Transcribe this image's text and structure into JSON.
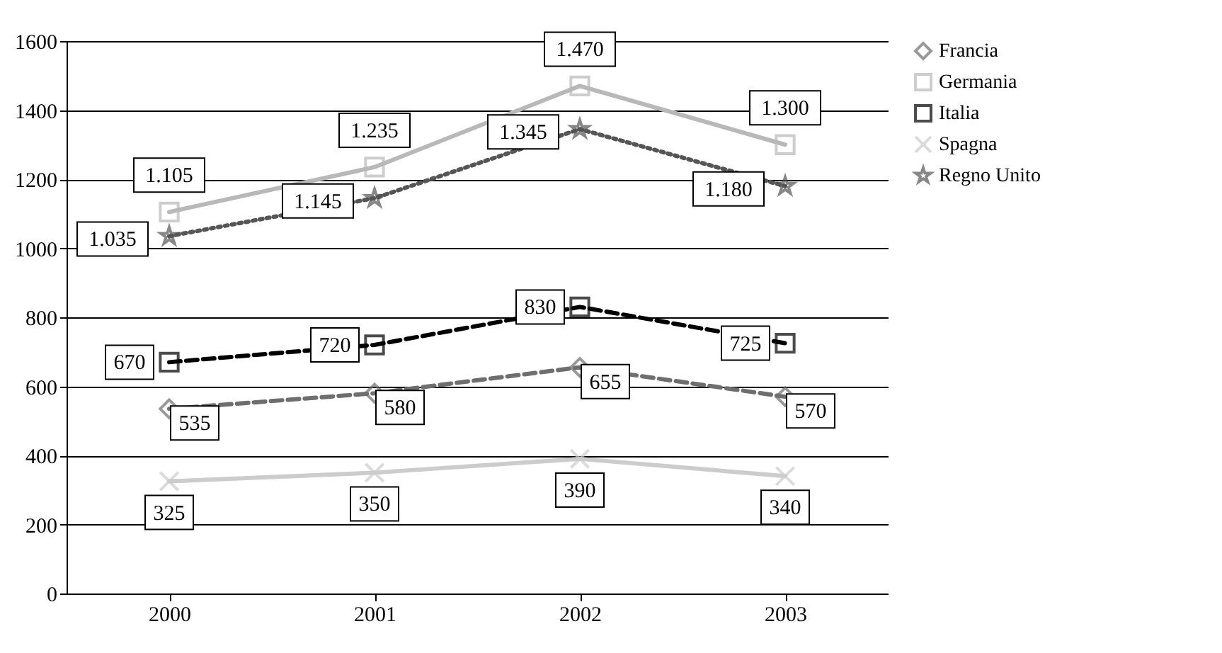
{
  "chart_data": {
    "type": "line",
    "categories": [
      "2000",
      "2001",
      "2002",
      "2003"
    ],
    "ylim": [
      0,
      1600
    ],
    "yticks": [
      0,
      200,
      400,
      600,
      800,
      1000,
      1200,
      1400,
      1600
    ],
    "grid": "y",
    "legend": "right",
    "series": [
      {
        "name": "Francia",
        "color": "#6e6e6e",
        "marker": "diamond",
        "line_style": "dashed",
        "values": [
          535,
          580,
          655,
          570
        ],
        "value_labels": [
          "535",
          "580",
          "655",
          "570"
        ]
      },
      {
        "name": "Germania",
        "color": "#b8b8b8",
        "marker": "square",
        "line_style": "solid",
        "values": [
          1105,
          1235,
          1470,
          1300
        ],
        "value_labels": [
          "1.105",
          "1.235",
          "1.470",
          "1.300"
        ]
      },
      {
        "name": "Italia",
        "color": "#000000",
        "marker": "square",
        "line_style": "dashed",
        "values": [
          670,
          720,
          830,
          725
        ],
        "value_labels": [
          "670",
          "720",
          "830",
          "725"
        ]
      },
      {
        "name": "Spagna",
        "color": "#cccccc",
        "marker": "cross",
        "line_style": "solid",
        "values": [
          325,
          350,
          390,
          340
        ],
        "value_labels": [
          "325",
          "350",
          "390",
          "340"
        ]
      },
      {
        "name": "Regno Unito",
        "color": "#555555",
        "marker": "star",
        "line_style": "dotted",
        "values": [
          1035,
          1145,
          1345,
          1180
        ],
        "value_labels": [
          "1.035",
          "1.145",
          "1.345",
          "1.180"
        ]
      }
    ]
  }
}
